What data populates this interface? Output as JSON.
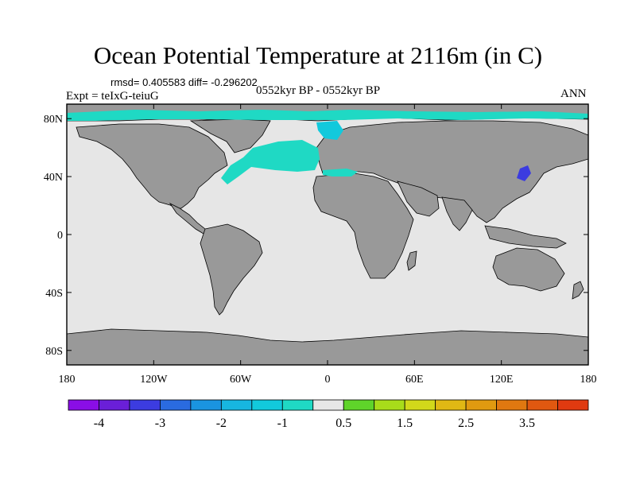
{
  "title": "Ocean Potential Temperature at 2116m (in C)",
  "stats": "rmsd= 0.405583 diff= -0.296202",
  "experiment": "Expt = teIxG-teiuG",
  "period": "0552kyr BP - 0552kyr BP",
  "season": "ANN",
  "map": {
    "projection": "cylindrical-equidistant",
    "lon_range": [
      -180,
      180
    ],
    "lat_range": [
      -90,
      90
    ],
    "land_color": "#999999",
    "ocean_color": "#e6e6e6",
    "y_ticks": [
      {
        "value": 80,
        "label": "80N"
      },
      {
        "value": 40,
        "label": "40N"
      },
      {
        "value": 0,
        "label": "0"
      },
      {
        "value": -40,
        "label": "40S"
      },
      {
        "value": -80,
        "label": "80S"
      }
    ],
    "x_ticks": [
      {
        "value": -180,
        "label": "180"
      },
      {
        "value": -120,
        "label": "120W"
      },
      {
        "value": -60,
        "label": "60W"
      },
      {
        "value": 0,
        "label": "0"
      },
      {
        "value": 60,
        "label": "60E"
      },
      {
        "value": 120,
        "label": "120E"
      },
      {
        "value": 180,
        "label": "180"
      }
    ]
  },
  "colorbar": {
    "colors": [
      "#8a0ee6",
      "#6a1fd8",
      "#3c3ce0",
      "#2a6be0",
      "#1a94e0",
      "#17b6e0",
      "#12c9dc",
      "#1fd9c4",
      "#e6e6e6",
      "#5fd42a",
      "#a8dc1a",
      "#d2d81a",
      "#e0b814",
      "#e09a10",
      "#e07810",
      "#e05810",
      "#e03a10"
    ],
    "labels": [
      {
        "index": 1,
        "text": "-4"
      },
      {
        "index": 3,
        "text": "-3"
      },
      {
        "index": 5,
        "text": "-2"
      },
      {
        "index": 7,
        "text": "-1"
      },
      {
        "index": 9,
        "text": "0.5"
      },
      {
        "index": 11,
        "text": "1.5"
      },
      {
        "index": 13,
        "text": "2.5"
      },
      {
        "index": 15,
        "text": "3.5"
      }
    ]
  }
}
